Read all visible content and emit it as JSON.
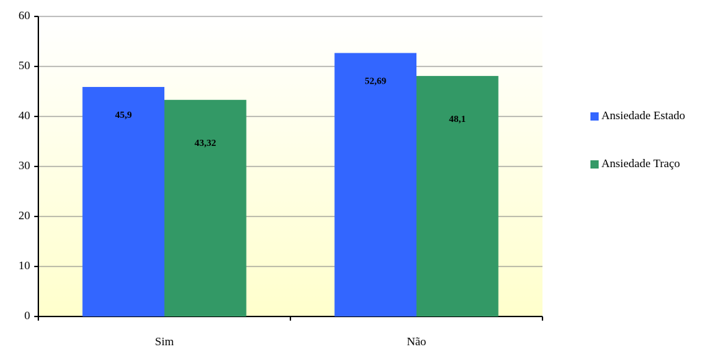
{
  "chart_data": {
    "type": "bar",
    "categories": [
      "Sim",
      "Não"
    ],
    "series": [
      {
        "name": "Ansiedade Estado",
        "color": "#3366ff",
        "values": [
          45.9,
          52.69
        ],
        "value_labels": [
          "45,9",
          "52,69"
        ]
      },
      {
        "name": "Ansiedade Traço",
        "color": "#339966",
        "values": [
          43.32,
          48.1
        ],
        "value_labels": [
          "43,32",
          "48,1"
        ]
      }
    ],
    "ylim": [
      0,
      60
    ],
    "yticks": [
      0,
      10,
      20,
      30,
      40,
      50,
      60
    ],
    "grid": true,
    "legend": "right"
  }
}
